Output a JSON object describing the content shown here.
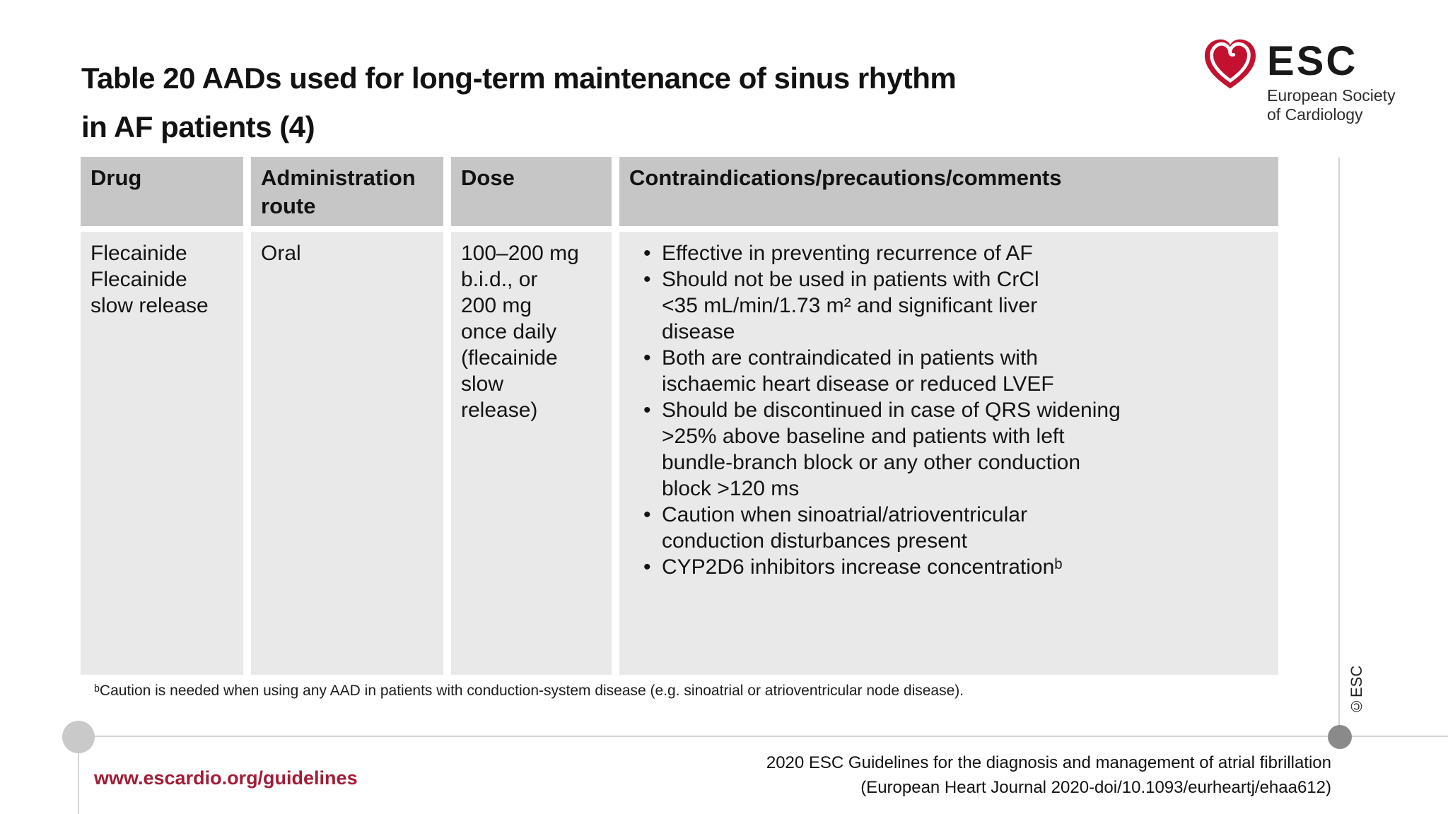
{
  "slide": {
    "title": "Table 20 AADs used for long-term maintenance of sinus rhythm\nin AF patients (4)"
  },
  "logo": {
    "acronym": "ESC",
    "name_line1": "European Society",
    "name_line2": "of Cardiology"
  },
  "table": {
    "headers": [
      "Drug",
      "Administration route",
      "Dose",
      "Contraindications/precautions/comments"
    ],
    "row": {
      "drug": "Flecainide\nFlecainide\nslow release",
      "route": "Oral",
      "dose": "100–200 mg\nb.i.d., or\n200 mg\nonce daily\n(flecainide\nslow\nrelease)",
      "bullets": [
        "Effective in preventing recurrence of AF",
        "Should not be used in patients with CrCl\n<35 mL/min/1.73 m² and significant liver\ndisease",
        "Both are contraindicated in patients with\nischaemic heart disease or reduced LVEF",
        "Should be discontinued in case of QRS widening\n>25% above baseline and patients with left\nbundle-branch block or any other conduction\nblock >120 ms",
        "Caution when sinoatrial/atrioventricular\nconduction disturbances present",
        "CYP2D6 inhibitors increase concentrationᵇ"
      ]
    }
  },
  "footnote": "ᵇCaution is needed when using any AAD in patients with conduction-system disease (e.g. sinoatrial or atrioventricular node disease).",
  "footer": {
    "url": "www.escardio.org/guidelines",
    "citation_line1": "2020 ESC Guidelines for the diagnosis and management of atrial fibrillation",
    "citation_line2": "(European Heart Journal 2020-doi/10.1093/eurheartj/ehaa612)",
    "copyright": "©ESC"
  },
  "colors": {
    "header_bg": "#c6c6c6",
    "row_bg": "#e9e9e9",
    "line": "#d4d4d4",
    "accent": "#a21c35",
    "logo_red": "#c31230"
  }
}
